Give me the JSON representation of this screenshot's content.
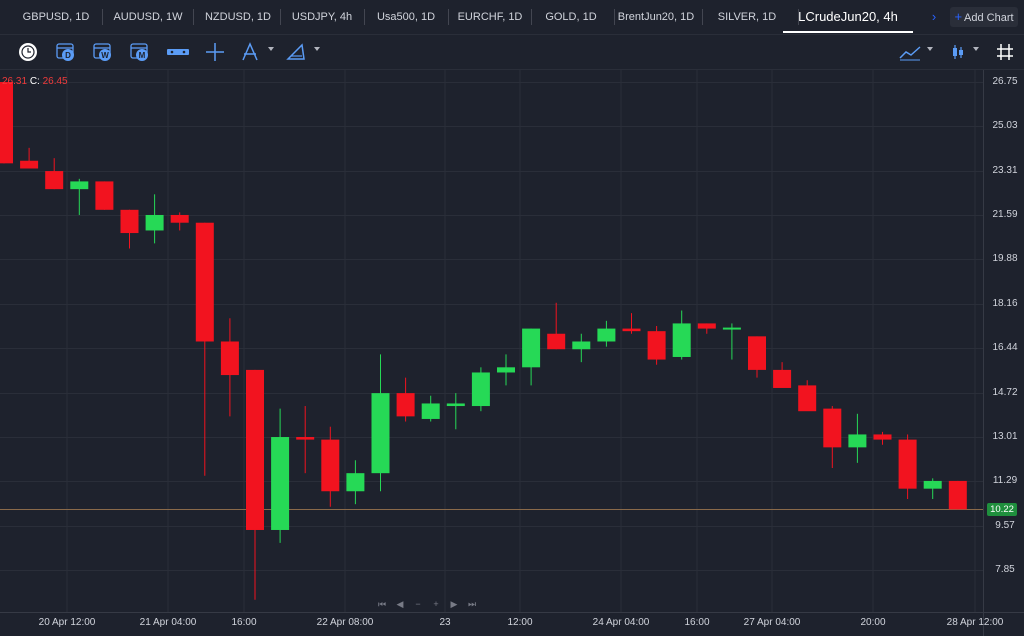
{
  "tabs": [
    {
      "label": "GBPUSD, 1D"
    },
    {
      "label": "AUDUSD, 1W"
    },
    {
      "label": "NZDUSD, 1D"
    },
    {
      "label": "USDJPY, 4h"
    },
    {
      "label": "Usa500, 1D"
    },
    {
      "label": "EURCHF, 1D"
    },
    {
      "label": "GOLD, 1D"
    },
    {
      "label": "BrentJun20, 1D"
    },
    {
      "label": "SILVER, 1D"
    },
    {
      "label": "LCrudeJun20, 4h"
    }
  ],
  "active_tab": "LCrudeJun20, 4h",
  "scroll_right_symbol": "›",
  "add_chart_label": "Add Chart",
  "add_chart_symbol": "+",
  "toolbar_icons": [
    "timeframe-circle-icon",
    "daily-calendar-icon",
    "weekly-calendar-icon",
    "monthly-calendar-icon",
    "horizontal-line-icon",
    "crosshair-icon",
    "drawing-tool-icon",
    "measure-tool-icon",
    "chart-type-line-icon",
    "candles-icon",
    "grid-icon"
  ],
  "calendar_letters": {
    "daily": "D",
    "weekly": "W",
    "monthly": "M"
  },
  "ohlc": {
    "open_value": "26.31",
    "close_label": "C:",
    "close_value": "26.45"
  },
  "price_axis_labels": [
    "26.75",
    "25.03",
    "23.31",
    "21.59",
    "19.88",
    "18.16",
    "16.44",
    "14.72",
    "13.01",
    "11.29",
    "9.57",
    "7.85"
  ],
  "last_price": "10.22",
  "time_axis_labels": [
    "20 Apr 12:00",
    "21 Apr 04:00",
    "16:00",
    "22 Apr 08:00",
    "23",
    "12:00",
    "24 Apr 04:00",
    "16:00",
    "27 Apr 04:00",
    "20:00",
    "28 Apr 12:00"
  ],
  "nav_controls": [
    "⏮",
    "◀",
    "−",
    "+",
    "▶",
    "⏭"
  ],
  "colors": {
    "up": "#26d956",
    "down": "#f2131f",
    "background": "#1e222d",
    "grid": "#2a2e39",
    "last_price_line": "#8a6a4a"
  },
  "chart_data": {
    "type": "candlestick",
    "symbol": "LCrudeJun20",
    "timeframe": "4h",
    "ylim": [
      6.5,
      27.0
    ],
    "candles": [
      {
        "o": 26.75,
        "h": 26.75,
        "l": 23.6,
        "c": 23.6
      },
      {
        "o": 23.7,
        "h": 24.2,
        "l": 23.4,
        "c": 23.4
      },
      {
        "o": 23.3,
        "h": 23.8,
        "l": 22.6,
        "c": 22.6
      },
      {
        "o": 22.6,
        "h": 23.0,
        "l": 21.6,
        "c": 22.9
      },
      {
        "o": 22.9,
        "h": 22.9,
        "l": 21.8,
        "c": 21.8
      },
      {
        "o": 21.8,
        "h": 21.8,
        "l": 20.3,
        "c": 20.9
      },
      {
        "o": 21.0,
        "h": 22.4,
        "l": 20.5,
        "c": 21.6
      },
      {
        "o": 21.6,
        "h": 21.7,
        "l": 21.0,
        "c": 21.3
      },
      {
        "o": 21.3,
        "h": 21.3,
        "l": 11.5,
        "c": 16.7
      },
      {
        "o": 16.7,
        "h": 17.6,
        "l": 13.8,
        "c": 15.4
      },
      {
        "o": 15.6,
        "h": 15.6,
        "l": 6.7,
        "c": 9.4
      },
      {
        "o": 9.4,
        "h": 14.1,
        "l": 8.9,
        "c": 13.0
      },
      {
        "o": 13.0,
        "h": 14.2,
        "l": 11.6,
        "c": 12.9
      },
      {
        "o": 12.9,
        "h": 13.4,
        "l": 10.3,
        "c": 10.9
      },
      {
        "o": 10.9,
        "h": 12.1,
        "l": 10.4,
        "c": 11.6
      },
      {
        "o": 11.6,
        "h": 16.2,
        "l": 10.9,
        "c": 14.7
      },
      {
        "o": 14.7,
        "h": 15.3,
        "l": 13.6,
        "c": 13.8
      },
      {
        "o": 13.7,
        "h": 14.6,
        "l": 13.6,
        "c": 14.3
      },
      {
        "o": 14.2,
        "h": 14.7,
        "l": 13.3,
        "c": 14.3
      },
      {
        "o": 14.2,
        "h": 15.7,
        "l": 14.0,
        "c": 15.5
      },
      {
        "o": 15.5,
        "h": 16.2,
        "l": 15.0,
        "c": 15.7
      },
      {
        "o": 15.7,
        "h": 17.2,
        "l": 15.0,
        "c": 17.2
      },
      {
        "o": 17.0,
        "h": 18.2,
        "l": 16.4,
        "c": 16.4
      },
      {
        "o": 16.4,
        "h": 17.0,
        "l": 15.9,
        "c": 16.7
      },
      {
        "o": 16.7,
        "h": 17.5,
        "l": 16.5,
        "c": 17.2
      },
      {
        "o": 17.2,
        "h": 17.8,
        "l": 17.0,
        "c": 17.1
      },
      {
        "o": 17.1,
        "h": 17.3,
        "l": 15.8,
        "c": 16.0
      },
      {
        "o": 16.1,
        "h": 17.9,
        "l": 16.0,
        "c": 17.4
      },
      {
        "o": 17.4,
        "h": 17.4,
        "l": 17.0,
        "c": 17.2
      },
      {
        "o": 17.2,
        "h": 17.4,
        "l": 16.0,
        "c": 17.2
      },
      {
        "o": 16.9,
        "h": 16.9,
        "l": 15.3,
        "c": 15.6
      },
      {
        "o": 15.6,
        "h": 15.9,
        "l": 15.0,
        "c": 14.9
      },
      {
        "o": 15.0,
        "h": 15.2,
        "l": 14.1,
        "c": 14.0
      },
      {
        "o": 14.1,
        "h": 14.2,
        "l": 11.8,
        "c": 12.6
      },
      {
        "o": 12.6,
        "h": 13.9,
        "l": 12.0,
        "c": 13.1
      },
      {
        "o": 13.1,
        "h": 13.2,
        "l": 12.7,
        "c": 12.9
      },
      {
        "o": 12.9,
        "h": 13.1,
        "l": 10.6,
        "c": 11.0
      },
      {
        "o": 11.0,
        "h": 11.4,
        "l": 10.6,
        "c": 11.3
      },
      {
        "o": 11.3,
        "h": 11.3,
        "l": 10.2,
        "c": 10.2
      }
    ],
    "last_price": 10.22,
    "y_tick_values": [
      26.75,
      25.03,
      23.31,
      21.59,
      19.88,
      18.16,
      16.44,
      14.72,
      13.01,
      11.29,
      9.57,
      7.85
    ]
  }
}
